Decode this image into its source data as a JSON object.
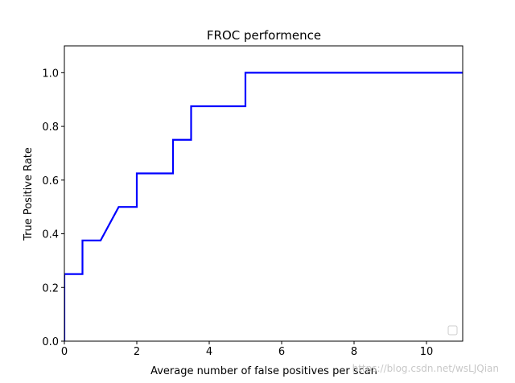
{
  "chart_data": {
    "type": "line",
    "title": "FROC performence",
    "x_label": "Average number of false positives per scan",
    "y_label": "True Positive Rate",
    "x": [
      0,
      0,
      0.5,
      0.5,
      1,
      1.5,
      2,
      2,
      3,
      3,
      3.5,
      3.5,
      5,
      5,
      11
    ],
    "series": [
      {
        "color": "#0000ff",
        "values": [
          0,
          0.25,
          0.25,
          0.375,
          0.375,
          0.5,
          0.5,
          0.625,
          0.625,
          0.75,
          0.75,
          0.875,
          0.875,
          1.0,
          1.0
        ]
      }
    ],
    "xlim": [
      0,
      11
    ],
    "ylim": [
      0,
      1.1
    ],
    "xticks": [
      0,
      2,
      4,
      6,
      8,
      10
    ],
    "yticks": [
      {
        "value": 0,
        "label": "0.0"
      },
      0.2,
      0.4,
      0.6,
      0.8,
      {
        "value": 1,
        "label": "1.0"
      }
    ],
    "grid": false,
    "legend": "lower right",
    "watermark": "https://blog.csdn.net/wsLJQian"
  }
}
